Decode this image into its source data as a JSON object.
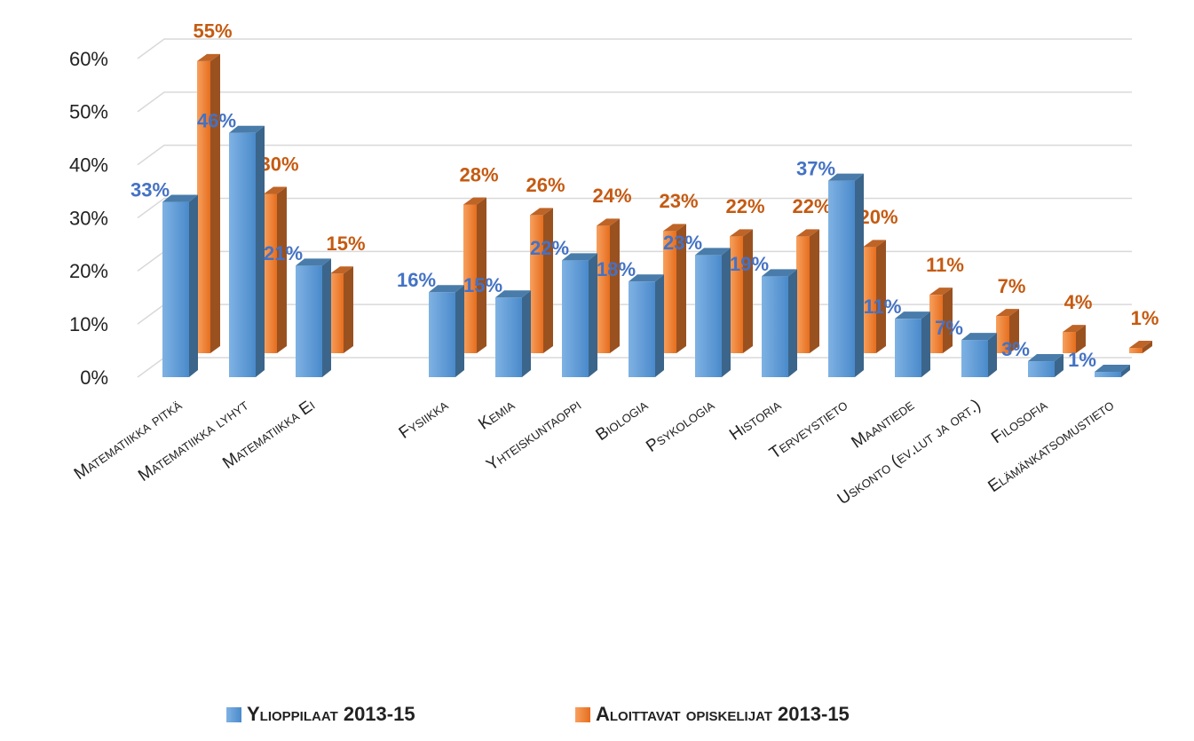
{
  "chart_data": {
    "type": "bar3d",
    "categories": [
      "Matematiikka pitkä",
      "Matematiikka lyhyt",
      "Matematiikka Ei",
      null,
      "Fysiikka",
      "Kemia",
      "Yhteiskuntaoppi",
      "Biologia",
      "Psykologia",
      "Historia",
      "Terveystieto",
      "Maantiede",
      "Uskonto (ev.lut ja ort.)",
      "Filosofia",
      "Elämänkatsomustieto"
    ],
    "series": [
      {
        "name": "Ylioppilaat 2013-15",
        "color": "#5b9bd5",
        "label_color": "#4472c4",
        "values": [
          33,
          46,
          21,
          null,
          16,
          15,
          22,
          18,
          23,
          19,
          37,
          11,
          7,
          3,
          1
        ],
        "value_labels": [
          "33%",
          "46%",
          "21%",
          null,
          "16%",
          "15%",
          "22%",
          "18%",
          "23%",
          "19%",
          "37%",
          "11%",
          "7%",
          "3%",
          "1%"
        ]
      },
      {
        "name": "Aloittavat opiskelijat 2013-15",
        "color": "#ed7d31",
        "label_color": "#c55a11",
        "values": [
          55,
          30,
          15,
          null,
          28,
          26,
          24,
          23,
          22,
          22,
          20,
          11,
          7,
          4,
          1
        ],
        "value_labels": [
          "55%",
          "30%",
          "15%",
          null,
          "28%",
          "26%",
          "24%",
          "23%",
          "22%",
          "22%",
          "20%",
          "11%",
          "7%",
          "4%",
          "1%"
        ]
      }
    ],
    "ylim": [
      0,
      60
    ],
    "yticks": [
      {
        "value": 0,
        "label": "0%"
      },
      {
        "value": 10,
        "label": "10%"
      },
      {
        "value": 20,
        "label": "20%"
      },
      {
        "value": 30,
        "label": "30%"
      },
      {
        "value": 40,
        "label": "40%"
      },
      {
        "value": 50,
        "label": "50%"
      },
      {
        "value": 60,
        "label": "60%"
      }
    ],
    "grid": true,
    "legend": "bottom"
  }
}
